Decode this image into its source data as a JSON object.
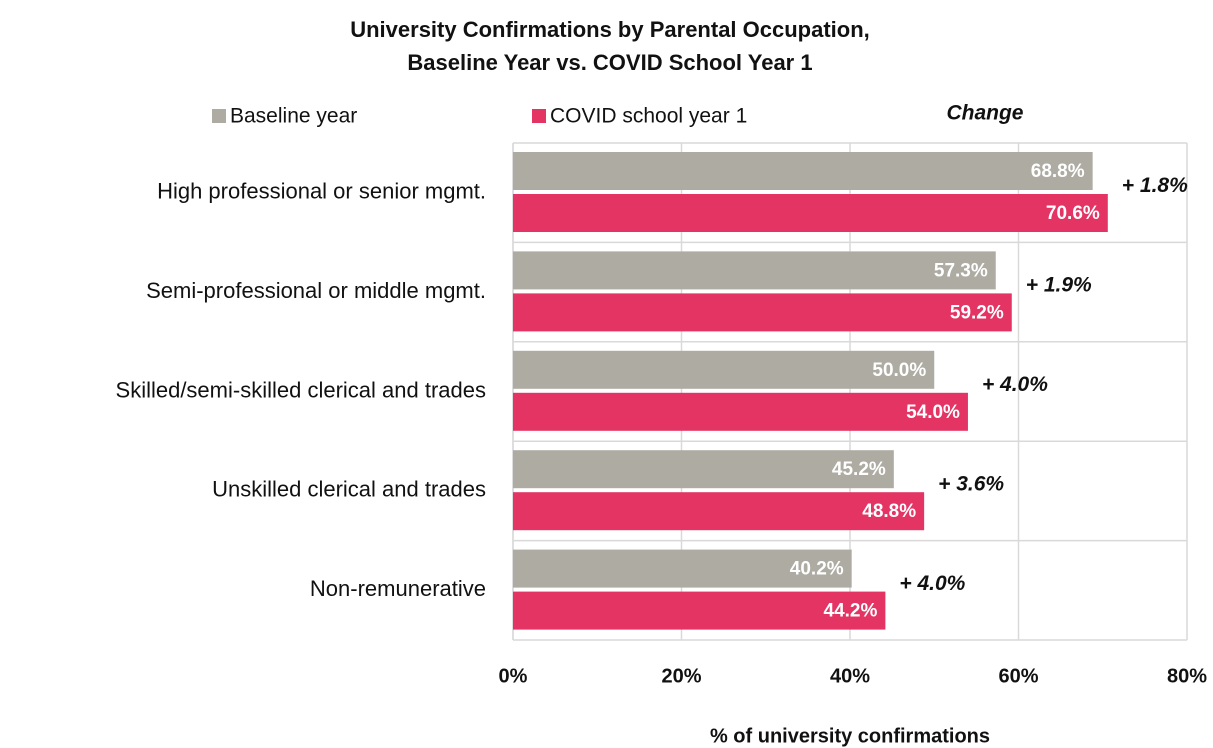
{
  "chart_data": {
    "type": "hbar",
    "title": [
      "University Confirmations by Parental Occupation,",
      "Baseline Year vs. COVID School Year 1"
    ],
    "categories": [
      "High professional or senior mgmt.",
      "Semi-professional or middle mgmt.",
      "Skilled/semi-skilled clerical and trades",
      "Unskilled clerical and trades",
      "Non-remunerative"
    ],
    "series": [
      {
        "name": "Baseline year",
        "color": "#aeaba3",
        "values": [
          68.8,
          57.3,
          50.0,
          45.2,
          40.2
        ],
        "value_labels": [
          "68.8%",
          "57.3%",
          "50.0%",
          "45.2%",
          "40.2%"
        ]
      },
      {
        "name": "COVID school year 1",
        "color": "#e33464",
        "values": [
          70.6,
          59.2,
          54.0,
          48.8,
          44.2
        ],
        "value_labels": [
          "70.6%",
          "59.2%",
          "54.0%",
          "48.8%",
          "44.2%"
        ]
      }
    ],
    "change_header": "Change",
    "change_labels": [
      "+ 1.8%",
      "+ 1.9%",
      "+ 4.0%",
      "+ 3.6%",
      "+ 4.0%"
    ],
    "xlabel": "% of university confirmations",
    "xlim": [
      0,
      80
    ],
    "xticks": [
      {
        "value": 0,
        "label": "0%"
      },
      {
        "value": 20,
        "label": "20%"
      },
      {
        "value": 40,
        "label": "40%"
      },
      {
        "value": 60,
        "label": "60%"
      },
      {
        "value": 80,
        "label": "80%"
      }
    ],
    "grid": true
  }
}
